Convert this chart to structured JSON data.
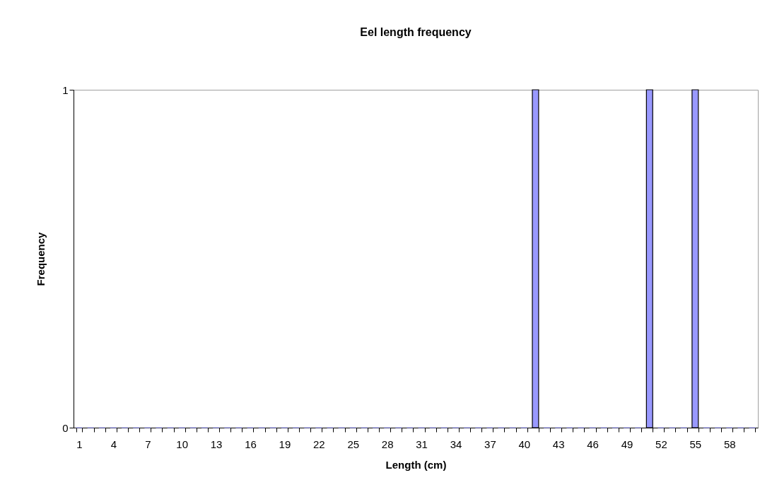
{
  "chart_data": {
    "type": "bar",
    "title": "Eel length frequency",
    "xlabel": "Length (cm)",
    "ylabel": "Frequency",
    "categories": [
      "1",
      null,
      null,
      "4",
      null,
      null,
      "7",
      null,
      null,
      "10",
      null,
      null,
      "13",
      null,
      null,
      "16",
      null,
      null,
      "19",
      null,
      null,
      "22",
      null,
      null,
      "25",
      null,
      null,
      "28",
      null,
      null,
      "31",
      null,
      null,
      "34",
      null,
      null,
      "37",
      null,
      null,
      "40",
      null,
      null,
      "43",
      null,
      null,
      "46",
      null,
      null,
      "49",
      null,
      null,
      "52",
      null,
      null,
      "55",
      null,
      null,
      "58",
      null,
      null
    ],
    "values": [
      0,
      0,
      0,
      0,
      0,
      0,
      0,
      0,
      0,
      0,
      0,
      0,
      0,
      0,
      0,
      0,
      0,
      0,
      0,
      0,
      0,
      0,
      0,
      0,
      0,
      0,
      0,
      0,
      0,
      0,
      0,
      0,
      0,
      0,
      0,
      0,
      0,
      0,
      0,
      0,
      1,
      0,
      0,
      0,
      0,
      0,
      0,
      0,
      0,
      0,
      1,
      0,
      0,
      0,
      1,
      0,
      0,
      0,
      0,
      0
    ],
    "color": "#9999ff",
    "ylim": [
      0,
      1
    ],
    "yticks": [
      0,
      1
    ],
    "grid": false,
    "legend": false
  }
}
